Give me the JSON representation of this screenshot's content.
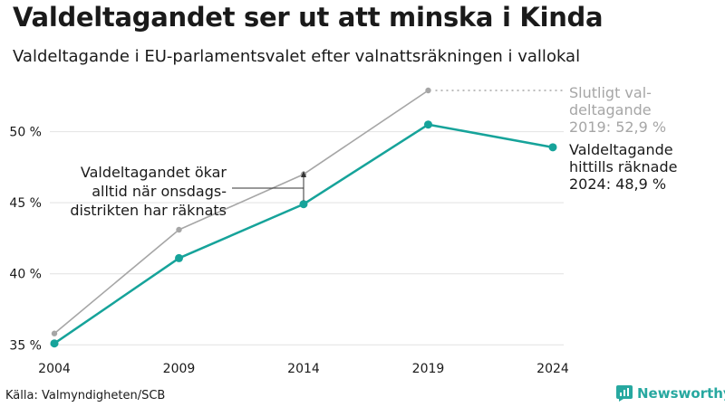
{
  "title": "Valdeltagandet ser ut att minska i Kinda",
  "subtitle": "Valdeltagande i EU-parlamentsvalet efter valnattsräkningen i vallokal",
  "source": "Källa: Valmyndigheten/SCB",
  "brand": "Newsworthy",
  "colors": {
    "final": "#a6a6a6",
    "counted": "#16a39a",
    "grid": "#e2e2e2",
    "text": "#1a1a1a",
    "brand": "#27a8a0"
  },
  "chart_data": {
    "type": "line",
    "x": [
      2004,
      2009,
      2014,
      2019,
      2024
    ],
    "x_tick_labels": [
      "2004",
      "2009",
      "2014",
      "2019",
      "2024"
    ],
    "y_ticks": [
      35,
      40,
      45,
      50
    ],
    "y_tick_labels": [
      "35 %",
      "40 %",
      "45 %",
      "50 %"
    ],
    "ylim": [
      34.7,
      52.9
    ],
    "grid": true,
    "series": [
      {
        "key": "final",
        "values": [
          35.8,
          43.1,
          47.0,
          52.9,
          null
        ]
      },
      {
        "key": "counted",
        "values": [
          35.1,
          41.1,
          44.9,
          50.5,
          48.9
        ]
      }
    ],
    "annotations": {
      "final_label": [
        "Slutligt val-",
        "deltagande",
        "2019: 52,9 %"
      ],
      "counted_label": [
        "Valdeltagande",
        "hittills räknade",
        "2024: 48,9 %"
      ],
      "note": [
        "Valdeltagandet ökar",
        "alltid när onsdags-",
        "distrikten har räknats"
      ]
    }
  }
}
